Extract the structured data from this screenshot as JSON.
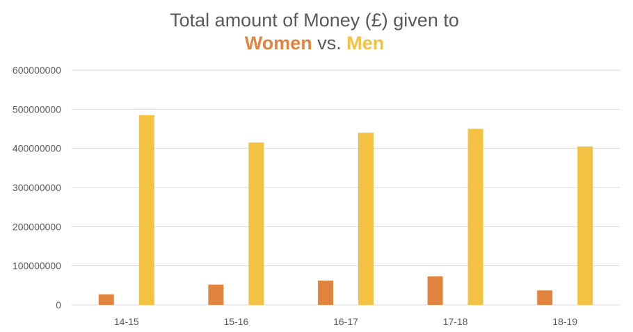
{
  "chart_data": {
    "type": "bar",
    "title_line1": "Total amount of Money (£) given to",
    "title_line2": {
      "women": "Women",
      "vs": " vs. ",
      "men": "Men"
    },
    "categories": [
      "14-15",
      "15-16",
      "16-17",
      "17-18",
      "18-19"
    ],
    "series": [
      {
        "name": "Women",
        "color": "#e0843f",
        "values": [
          27000000,
          52000000,
          62000000,
          73000000,
          37000000
        ]
      },
      {
        "name": "Men",
        "color": "#f4c242",
        "values": [
          485000000,
          415000000,
          440000000,
          450000000,
          405000000
        ]
      }
    ],
    "ylim": [
      0,
      600000000
    ],
    "yticks": [
      0,
      100000000,
      200000000,
      300000000,
      400000000,
      500000000,
      600000000
    ],
    "ytick_labels": [
      "0",
      "100000000",
      "200000000",
      "300000000",
      "400000000",
      "500000000",
      "600000000"
    ],
    "grid": true,
    "legend": "none",
    "colors": {
      "title": "#595959",
      "women": "#e0843f",
      "men": "#f4c242",
      "grid": "#d9d9d9"
    }
  }
}
